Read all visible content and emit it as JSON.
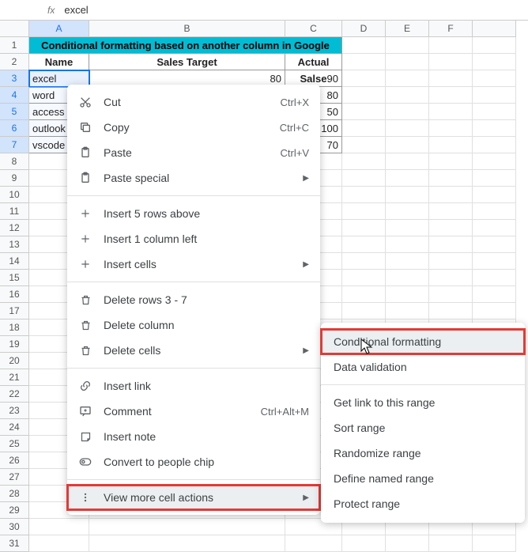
{
  "formula_bar": {
    "fx": "fx",
    "value": "excel"
  },
  "columns": [
    "A",
    "B",
    "C",
    "D",
    "E",
    "F"
  ],
  "row_count": 31,
  "title": "Conditional formatting based on another column in Google sheets",
  "headers": {
    "name": "Name",
    "target": "Sales Target",
    "actual": "Actual Salse"
  },
  "rows": [
    {
      "name": "excel",
      "target": 80,
      "actual": 90
    },
    {
      "name": "word",
      "target": "",
      "actual": 80
    },
    {
      "name": "access",
      "target": "",
      "actual": 50
    },
    {
      "name": "outlook",
      "target": "",
      "actual": 100
    },
    {
      "name": "vscode",
      "target": "",
      "actual": 70
    }
  ],
  "ctx": {
    "cut": {
      "label": "Cut",
      "shortcut": "Ctrl+X"
    },
    "copy": {
      "label": "Copy",
      "shortcut": "Ctrl+C"
    },
    "paste": {
      "label": "Paste",
      "shortcut": "Ctrl+V"
    },
    "paste_special": {
      "label": "Paste special"
    },
    "insert_rows": {
      "label": "Insert 5 rows above"
    },
    "insert_col": {
      "label": "Insert 1 column left"
    },
    "insert_cells": {
      "label": "Insert cells"
    },
    "delete_rows": {
      "label": "Delete rows 3 - 7"
    },
    "delete_col": {
      "label": "Delete column"
    },
    "delete_cells": {
      "label": "Delete cells"
    },
    "insert_link": {
      "label": "Insert link"
    },
    "comment": {
      "label": "Comment",
      "shortcut": "Ctrl+Alt+M"
    },
    "insert_note": {
      "label": "Insert note"
    },
    "people_chip": {
      "label": "Convert to people chip"
    },
    "view_more": {
      "label": "View more cell actions"
    }
  },
  "sub": {
    "cond_fmt": "Conditional formatting",
    "data_val": "Data validation",
    "get_link": "Get link to this range",
    "sort_range": "Sort range",
    "randomize": "Randomize range",
    "named_range": "Define named range",
    "protect": "Protect range"
  },
  "colors": {
    "title_bg": "#00bcd4",
    "highlight_red": "#e53935",
    "selection": "#1a73e8"
  }
}
